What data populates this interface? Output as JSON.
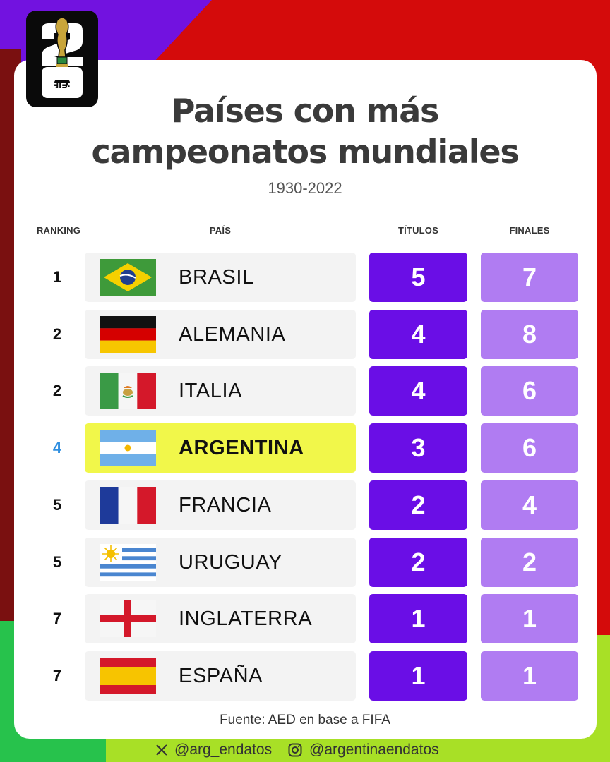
{
  "logo": {
    "text": "FIFA",
    "number": "26"
  },
  "title_line1": "Países con más",
  "title_line2": "campeonatos mundiales",
  "subtitle": "1930-2022",
  "columns": {
    "ranking": "RANKING",
    "pais": "PAÍS",
    "titulos": "TÍTULOS",
    "finales": "FINALES"
  },
  "chart_data": {
    "type": "table",
    "title": "Países con más campeonatos mundiales",
    "subtitle": "1930-2022",
    "columns": [
      "RANKING",
      "PAÍS",
      "TÍTULOS",
      "FINALES"
    ],
    "rows": [
      {
        "rank": "1",
        "country": "BRASIL",
        "flag": "brazil-flag",
        "titles": "5",
        "finals": "7",
        "highlight": false
      },
      {
        "rank": "2",
        "country": "ALEMANIA",
        "flag": "germany-flag",
        "titles": "4",
        "finals": "8",
        "highlight": false
      },
      {
        "rank": "2",
        "country": "ITALIA",
        "flag": "mexico-style-flag",
        "titles": "4",
        "finals": "6",
        "highlight": false
      },
      {
        "rank": "4",
        "country": "ARGENTINA",
        "flag": "argentina-flag",
        "titles": "3",
        "finals": "6",
        "highlight": true
      },
      {
        "rank": "5",
        "country": "FRANCIA",
        "flag": "france-flag",
        "titles": "2",
        "finals": "4",
        "highlight": false
      },
      {
        "rank": "5",
        "country": "URUGUAY",
        "flag": "uruguay-flag",
        "titles": "2",
        "finals": "2",
        "highlight": false
      },
      {
        "rank": "7",
        "country": "INGLATERRA",
        "flag": "england-flag",
        "titles": "1",
        "finals": "1",
        "highlight": false
      },
      {
        "rank": "7",
        "country": "ESPAÑA",
        "flag": "spain-flag",
        "titles": "1",
        "finals": "1",
        "highlight": false
      }
    ]
  },
  "source": "Fuente: AED en base a FIFA",
  "footer": {
    "x_handle": "@arg_endatos",
    "instagram_handle": "@argentinaendatos"
  },
  "colors": {
    "titles_box": "#6a0ee6",
    "finals_box": "#b07cf2",
    "highlight_row": "#f1f74a",
    "highlight_rank": "#2f8fe0"
  }
}
